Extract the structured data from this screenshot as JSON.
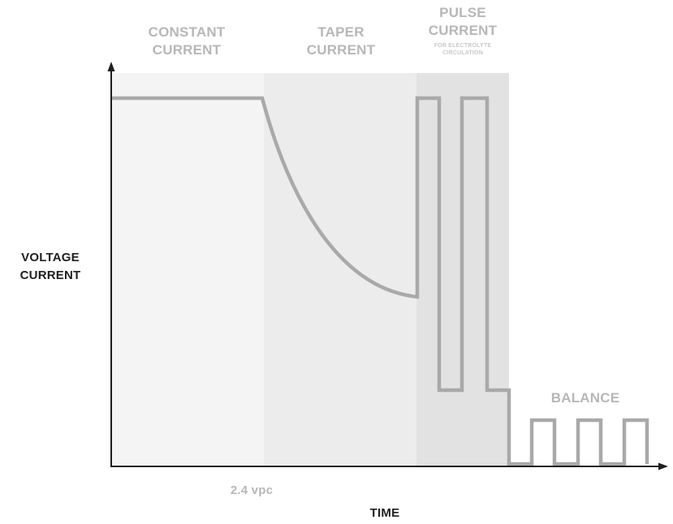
{
  "phases": {
    "constant": [
      "CONSTANT",
      "CURRENT"
    ],
    "taper": [
      "TAPER",
      "CURRENT"
    ],
    "pulse": [
      "PULSE",
      "CURRENT"
    ],
    "pulse_note": [
      "FOR ELECTROLYTE",
      "CIRCULATION"
    ],
    "balance": "BALANCE"
  },
  "axes": {
    "y_label": [
      "VOLTAGE",
      "CURRENT"
    ],
    "x_label": "TIME",
    "x_marker": "2.4 vpc"
  },
  "colors": {
    "constant_zone": "#f4f4f4",
    "taper_zone": "#ececec",
    "pulse_zone": "#e2e2e2",
    "curve": "#a9a9a9",
    "axis": "#1f1f1f",
    "phase_text": "#b7b7b7"
  }
}
